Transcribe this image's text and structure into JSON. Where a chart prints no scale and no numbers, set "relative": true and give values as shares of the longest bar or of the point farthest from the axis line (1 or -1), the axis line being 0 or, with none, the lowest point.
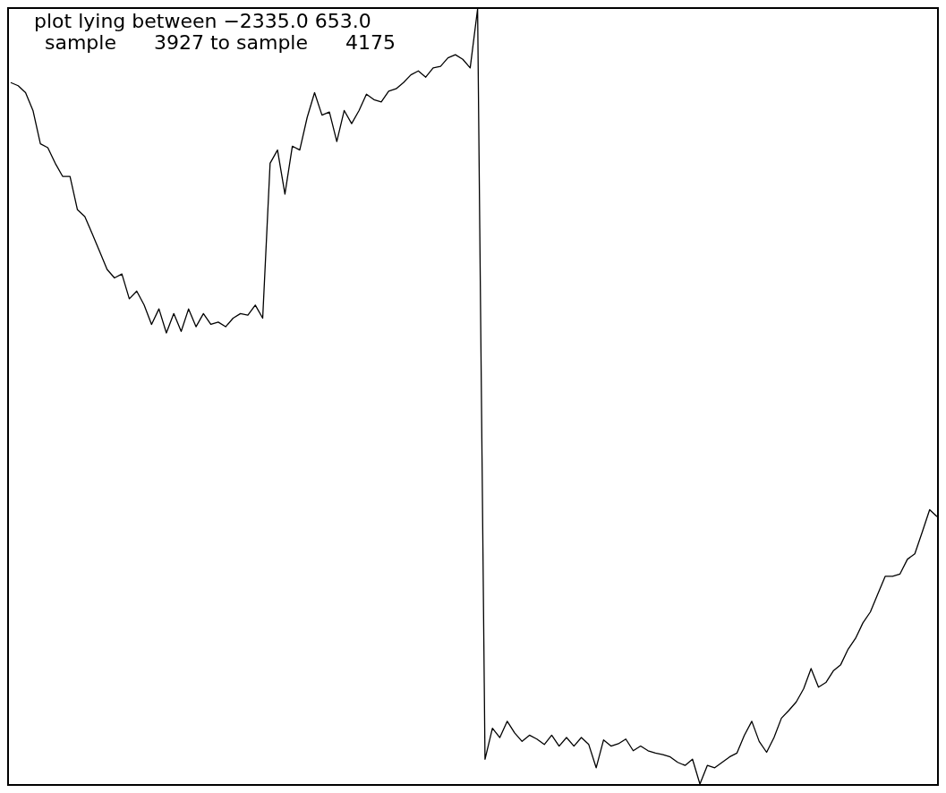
{
  "chart_data": {
    "type": "line",
    "title": "plot lying between −2335.0 653.0",
    "subtitle": "sample      3927 to sample      4175",
    "relative": true,
    "categories": [
      null,
      null,
      null,
      null,
      null,
      null,
      null,
      null,
      null,
      null,
      null,
      null,
      null,
      null,
      null,
      null,
      null,
      null,
      null,
      null,
      null,
      null,
      null,
      null,
      null,
      null,
      null,
      null,
      null,
      null,
      null,
      null,
      null,
      null,
      null,
      null,
      null,
      null,
      null,
      null,
      null,
      null,
      null,
      null,
      null,
      null,
      null,
      null,
      null,
      null,
      null,
      null,
      null,
      null,
      null,
      null,
      null,
      null,
      null,
      null,
      null,
      null,
      null,
      null,
      null,
      null,
      null,
      null,
      null,
      null,
      null,
      null,
      null,
      null,
      null,
      null,
      null,
      null,
      null,
      null,
      null,
      null,
      null,
      null,
      null,
      null,
      null,
      null,
      null,
      null,
      null,
      null,
      null,
      null,
      null,
      null,
      null,
      null,
      null,
      null,
      null,
      null,
      null,
      null,
      null,
      null,
      null,
      null,
      null,
      null,
      null,
      null,
      null,
      null,
      null,
      null,
      null,
      null,
      null,
      null,
      null,
      null,
      null,
      null,
      null,
      null
    ],
    "series": [
      {
        "color": "#000000",
        "values": [
          0.905,
          0.901,
          0.892,
          0.869,
          0.826,
          0.821,
          0.801,
          0.784,
          0.784,
          0.741,
          0.732,
          0.71,
          0.687,
          0.664,
          0.653,
          0.658,
          0.626,
          0.636,
          0.618,
          0.593,
          0.613,
          0.582,
          0.607,
          0.584,
          0.613,
          0.59,
          0.607,
          0.593,
          0.596,
          0.59,
          0.601,
          0.607,
          0.605,
          0.618,
          0.601,
          0.801,
          0.818,
          0.761,
          0.823,
          0.818,
          0.86,
          0.892,
          0.863,
          0.867,
          0.829,
          0.869,
          0.852,
          0.869,
          0.89,
          0.883,
          0.88,
          0.894,
          0.897,
          0.905,
          0.915,
          0.92,
          0.912,
          0.924,
          0.926,
          0.937,
          0.941,
          0.935,
          0.924,
          1,
          0.032,
          0.072,
          0.06,
          0.081,
          0.066,
          0.055,
          0.063,
          0.058,
          0.051,
          0.063,
          0.049,
          0.06,
          0.049,
          0.06,
          0.051,
          0.021,
          0.057,
          0.049,
          0.052,
          0.058,
          0.043,
          0.049,
          0.043,
          0.04,
          0.038,
          0.035,
          0.028,
          0.024,
          0.032,
          0,
          0.024,
          0.021,
          0.028,
          0.035,
          0.04,
          0.063,
          0.081,
          0.055,
          0.041,
          0.06,
          0.085,
          0.095,
          0.106,
          0.123,
          0.149,
          0.125,
          0.131,
          0.146,
          0.154,
          0.174,
          0.188,
          0.208,
          0.222,
          0.245,
          0.268,
          0.268,
          0.271,
          0.29,
          0.297,
          0.325,
          0.354,
          0.345
        ]
      }
    ]
  }
}
